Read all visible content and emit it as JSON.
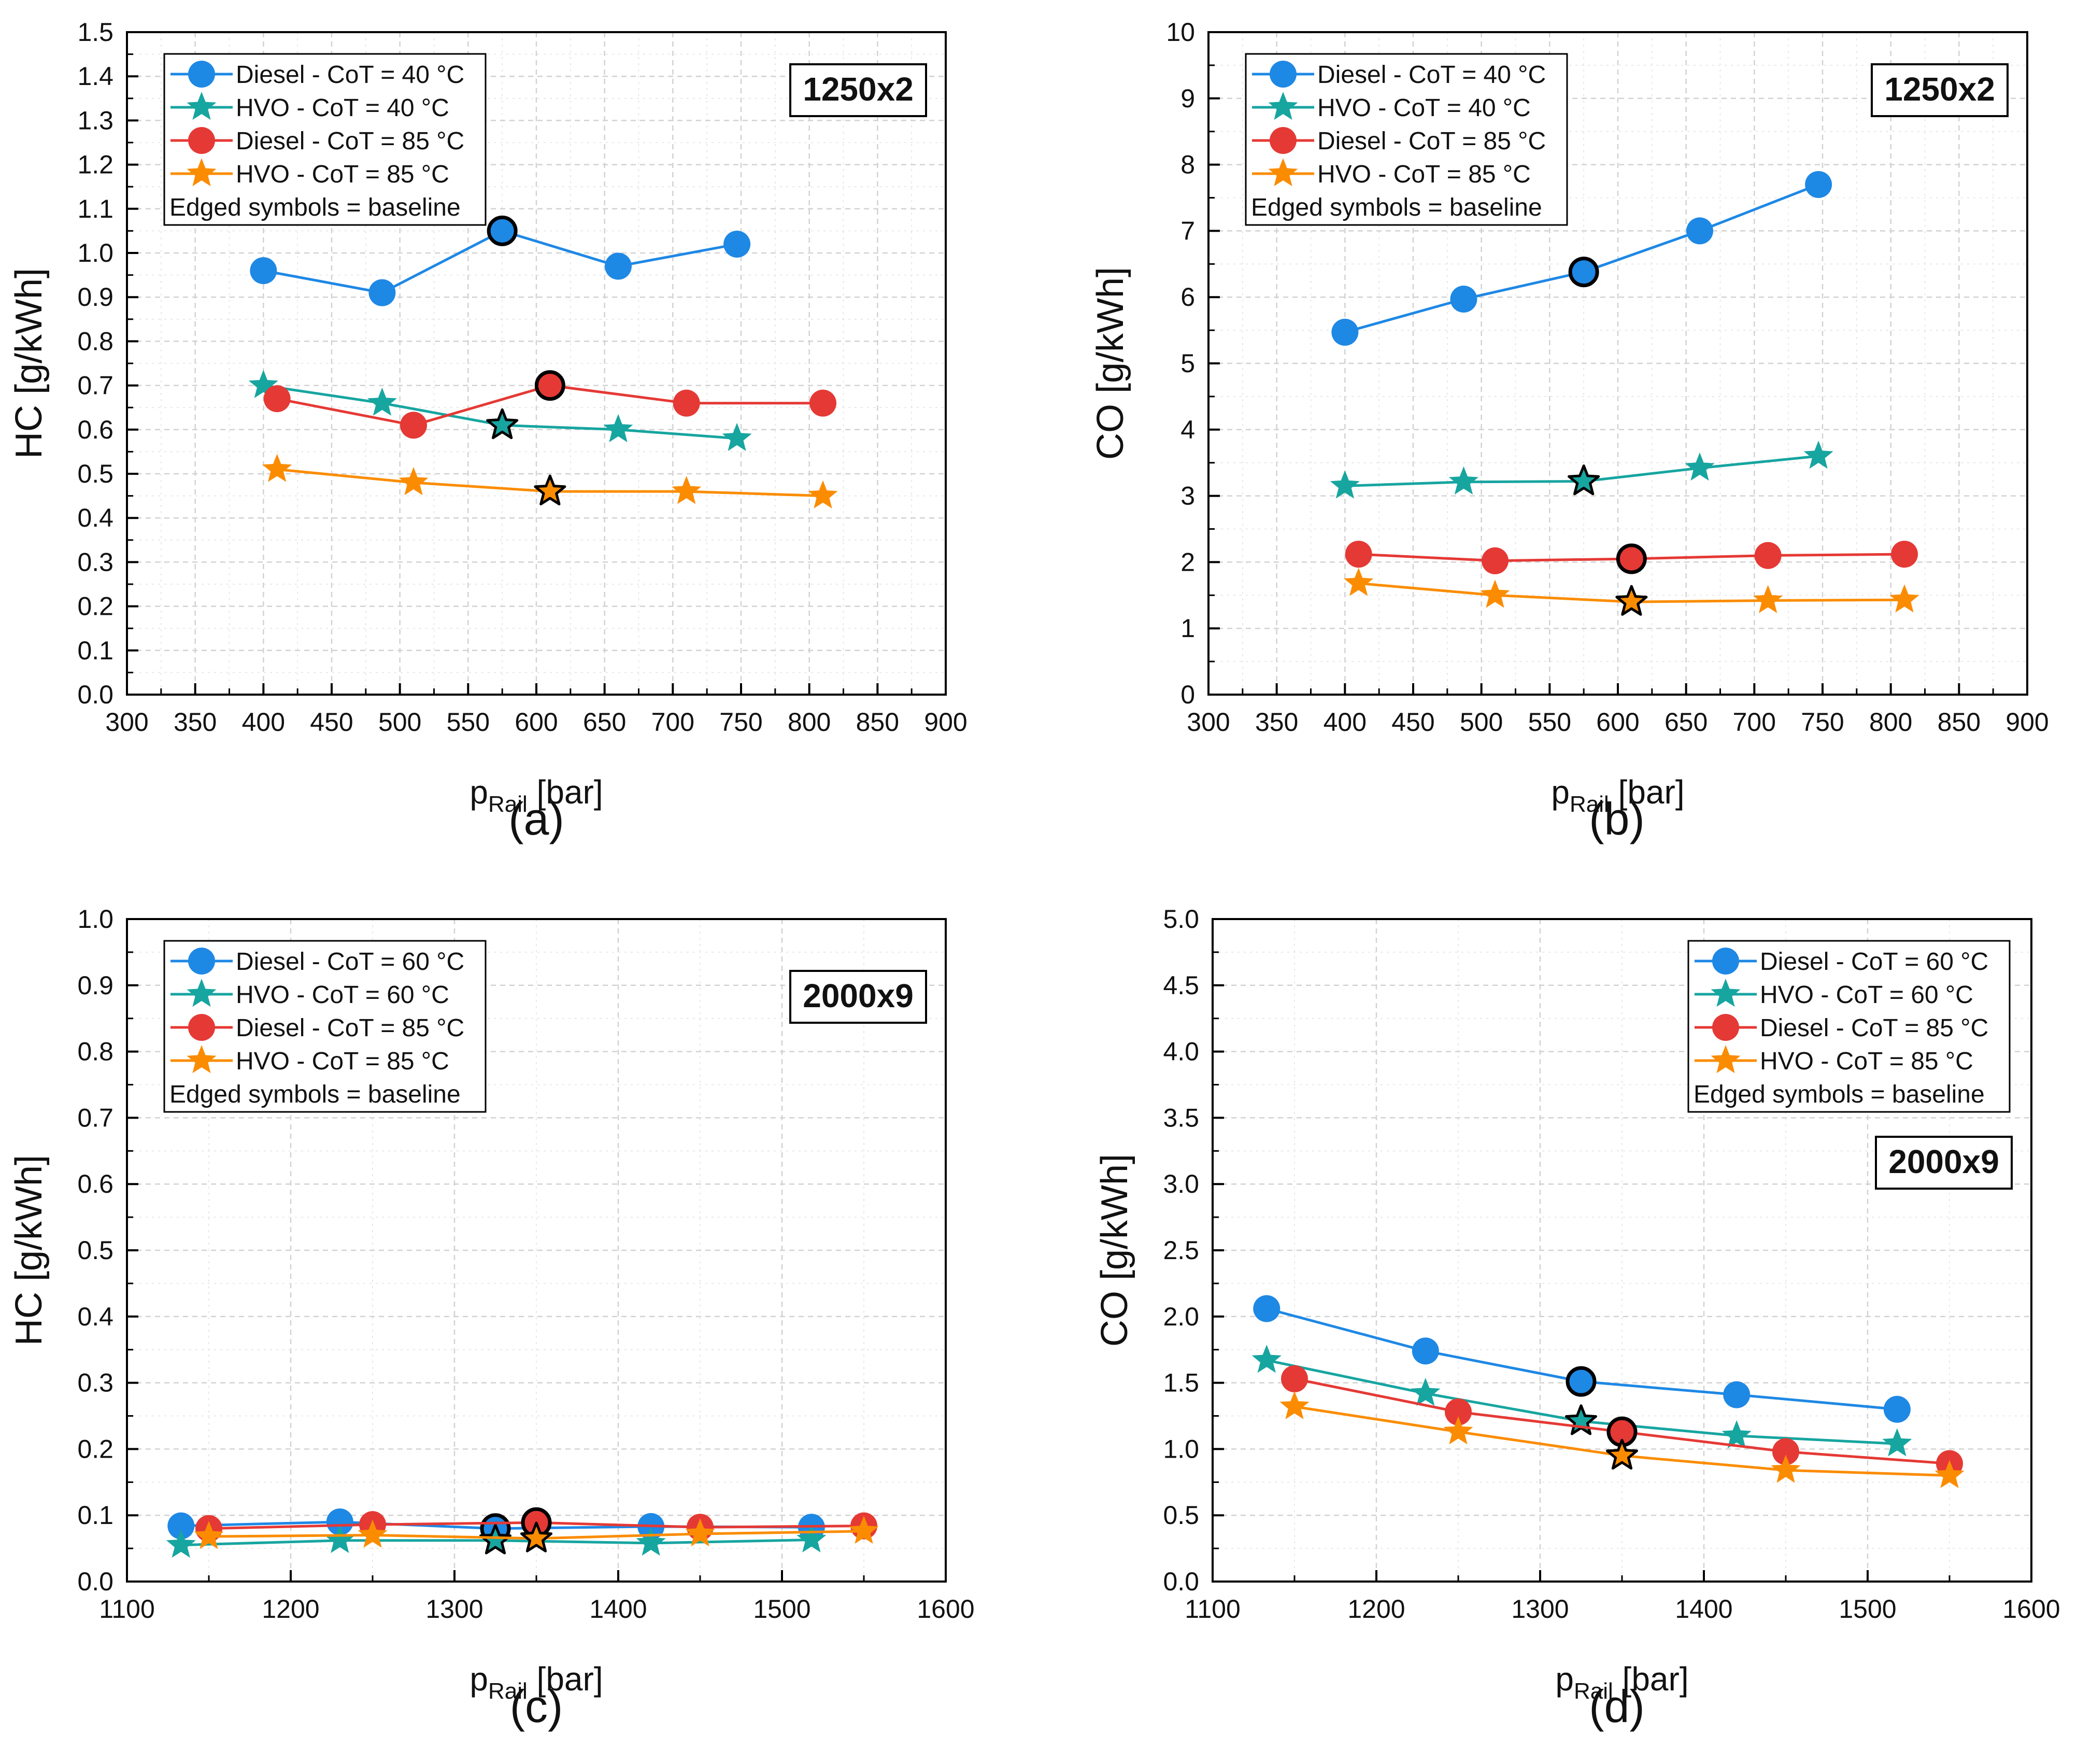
{
  "chart_data": [
    {
      "type": "line",
      "panel_label": "(a)",
      "badge": "1250x2",
      "ylabel": "HC [g/kWh]",
      "xlabel_main": "p",
      "xlabel_sub": "Rail",
      "xlabel_unit": " [bar]",
      "xlim": [
        300,
        900
      ],
      "ylim": [
        0,
        1.5
      ],
      "xticks": [
        300,
        350,
        400,
        450,
        500,
        550,
        600,
        650,
        700,
        750,
        800,
        850,
        900
      ],
      "yticks": [
        0,
        0.1,
        0.2,
        0.3,
        0.4,
        0.5,
        0.6,
        0.7,
        0.8,
        0.9,
        1.0,
        1.1,
        1.2,
        1.3,
        1.4,
        1.5
      ],
      "ytick_decimals": 1,
      "legend_position": "top-left",
      "legend_note": "Edged symbols = baseline",
      "grid": true,
      "series": [
        {
          "name": "Diesel - CoT = 40 °C",
          "marker": "circle",
          "color": "#1E88E5",
          "x": [
            400,
            487,
            575,
            660,
            747
          ],
          "y": [
            0.96,
            0.91,
            1.05,
            0.97,
            1.02
          ],
          "baseline_index": 2
        },
        {
          "name": "HVO - CoT = 40 °C",
          "marker": "star",
          "color": "#17A5A0",
          "x": [
            400,
            487,
            575,
            660,
            747
          ],
          "y": [
            0.7,
            0.66,
            0.61,
            0.6,
            0.58
          ],
          "baseline_index": 2
        },
        {
          "name": "Diesel - CoT = 85 °C",
          "marker": "circle",
          "color": "#E53935",
          "x": [
            410,
            510,
            610,
            710,
            810
          ],
          "y": [
            0.67,
            0.61,
            0.7,
            0.66,
            0.66
          ],
          "baseline_index": 2
        },
        {
          "name": "HVO - CoT = 85 °C",
          "marker": "star",
          "color": "#FB8C00",
          "x": [
            410,
            510,
            610,
            710,
            810
          ],
          "y": [
            0.51,
            0.48,
            0.46,
            0.46,
            0.45
          ],
          "baseline_index": 2
        }
      ]
    },
    {
      "type": "line",
      "panel_label": "(b)",
      "badge": "1250x2",
      "ylabel": "CO [g/kWh]",
      "xlabel_main": "p",
      "xlabel_sub": "Rail",
      "xlabel_unit": " [bar]",
      "xlim": [
        300,
        900
      ],
      "ylim": [
        0,
        10
      ],
      "xticks": [
        300,
        350,
        400,
        450,
        500,
        550,
        600,
        650,
        700,
        750,
        800,
        850,
        900
      ],
      "yticks": [
        0,
        1,
        2,
        3,
        4,
        5,
        6,
        7,
        8,
        9,
        10
      ],
      "ytick_decimals": 0,
      "legend_position": "top-left",
      "legend_note": "Edged symbols = baseline",
      "grid": true,
      "series": [
        {
          "name": "Diesel - CoT = 40 °C",
          "marker": "circle",
          "color": "#1E88E5",
          "x": [
            400,
            487,
            575,
            660,
            747
          ],
          "y": [
            5.47,
            5.97,
            6.38,
            7.0,
            7.7
          ],
          "baseline_index": 2
        },
        {
          "name": "HVO - CoT = 40 °C",
          "marker": "star",
          "color": "#17A5A0",
          "x": [
            400,
            487,
            575,
            660,
            747
          ],
          "y": [
            3.15,
            3.21,
            3.22,
            3.42,
            3.6
          ],
          "baseline_index": 2
        },
        {
          "name": "Diesel - CoT = 85 °C",
          "marker": "circle",
          "color": "#E53935",
          "x": [
            410,
            510,
            610,
            710,
            810
          ],
          "y": [
            2.12,
            2.02,
            2.05,
            2.1,
            2.12
          ],
          "baseline_index": 2
        },
        {
          "name": "HVO - CoT = 85 °C",
          "marker": "star",
          "color": "#FB8C00",
          "x": [
            410,
            510,
            610,
            710,
            810
          ],
          "y": [
            1.68,
            1.5,
            1.4,
            1.42,
            1.43
          ],
          "baseline_index": 2
        }
      ]
    },
    {
      "type": "line",
      "panel_label": "(c)",
      "badge": "2000x9",
      "ylabel": "HC [g/kWh]",
      "xlabel_main": "p",
      "xlabel_sub": "Rail",
      "xlabel_unit": " [bar]",
      "xlim": [
        1100,
        1600
      ],
      "ylim": [
        0,
        1.0
      ],
      "xticks": [
        1100,
        1200,
        1300,
        1400,
        1500,
        1600
      ],
      "yticks": [
        0,
        0.1,
        0.2,
        0.3,
        0.4,
        0.5,
        0.6,
        0.7,
        0.8,
        0.9,
        1.0
      ],
      "ytick_decimals": 1,
      "legend_position": "top-left",
      "legend_note": "Edged symbols = baseline",
      "grid": true,
      "series": [
        {
          "name": "Diesel - CoT = 60 °C",
          "marker": "circle",
          "color": "#1E88E5",
          "x": [
            1133,
            1230,
            1325,
            1420,
            1518
          ],
          "y": [
            0.084,
            0.09,
            0.08,
            0.083,
            0.082
          ],
          "baseline_index": 2
        },
        {
          "name": "HVO - CoT = 60 °C",
          "marker": "star",
          "color": "#17A5A0",
          "x": [
            1133,
            1230,
            1325,
            1420,
            1518
          ],
          "y": [
            0.055,
            0.062,
            0.062,
            0.058,
            0.063
          ],
          "baseline_index": 2
        },
        {
          "name": "Diesel - CoT = 85 °C",
          "marker": "circle",
          "color": "#E53935",
          "x": [
            1150,
            1250,
            1350,
            1450,
            1550
          ],
          "y": [
            0.08,
            0.086,
            0.089,
            0.082,
            0.084
          ],
          "baseline_index": 2
        },
        {
          "name": "HVO - CoT = 85 °C",
          "marker": "star",
          "color": "#FB8C00",
          "x": [
            1150,
            1250,
            1350,
            1450,
            1550
          ],
          "y": [
            0.068,
            0.07,
            0.065,
            0.072,
            0.076
          ],
          "baseline_index": 2
        }
      ]
    },
    {
      "type": "line",
      "panel_label": "(d)",
      "badge": "2000x9",
      "ylabel": "CO [g/kWh]",
      "xlabel_main": "p",
      "xlabel_sub": "Rail",
      "xlabel_unit": " [bar]",
      "xlim": [
        1100,
        1600
      ],
      "ylim": [
        0,
        5.0
      ],
      "xticks": [
        1100,
        1200,
        1300,
        1400,
        1500,
        1600
      ],
      "yticks": [
        0,
        0.5,
        1.0,
        1.5,
        2.0,
        2.5,
        3.0,
        3.5,
        4.0,
        4.5,
        5.0
      ],
      "ytick_decimals": 1,
      "legend_position": "top-right",
      "legend_note": "Edged symbols = baseline",
      "grid": true,
      "series": [
        {
          "name": "Diesel - CoT = 60 °C",
          "marker": "circle",
          "color": "#1E88E5",
          "x": [
            1133,
            1230,
            1325,
            1420,
            1518
          ],
          "y": [
            2.06,
            1.74,
            1.51,
            1.41,
            1.3
          ],
          "baseline_index": 2
        },
        {
          "name": "HVO - CoT = 60 °C",
          "marker": "star",
          "color": "#17A5A0",
          "x": [
            1133,
            1230,
            1325,
            1420,
            1518
          ],
          "y": [
            1.67,
            1.42,
            1.21,
            1.1,
            1.04
          ],
          "baseline_index": 2
        },
        {
          "name": "Diesel - CoT = 85 °C",
          "marker": "circle",
          "color": "#E53935",
          "x": [
            1150,
            1250,
            1350,
            1450,
            1550
          ],
          "y": [
            1.53,
            1.28,
            1.13,
            0.98,
            0.89
          ],
          "baseline_index": 2
        },
        {
          "name": "HVO - CoT = 85 °C",
          "marker": "star",
          "color": "#FB8C00",
          "x": [
            1150,
            1250,
            1350,
            1450,
            1550
          ],
          "y": [
            1.32,
            1.13,
            0.95,
            0.84,
            0.8
          ],
          "baseline_index": 2
        }
      ]
    }
  ]
}
